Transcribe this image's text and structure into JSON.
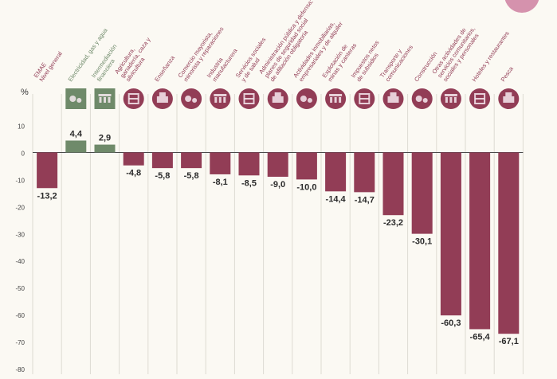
{
  "chart_data": {
    "type": "bar",
    "ylabel": "%",
    "ylim": [
      -80,
      10
    ],
    "yticks": [
      10,
      0,
      -10,
      -20,
      -30,
      -40,
      -50,
      -60,
      -70,
      -80
    ],
    "grid": "vertical",
    "colors": {
      "positive": "#6f8a6a",
      "negative": "#923d56",
      "grid": "#dedbd2",
      "zero_line": "#4a4a4a"
    },
    "categories": [
      "EMAE\nNivel general",
      "Electricidad, gas y agua",
      "Intermediación\nfinanciera",
      "Agricultura,\nganadería, caza y\nsilvicultura",
      "Enseñanza",
      "Comercio mayorista,\nminorista y reparaciones",
      "Industria\nmanufacturera",
      "Servicios sociales\ny de salud",
      "Administración pública y defensa;\nplanes de seguridad social\nde afiliación obligatoria",
      "Actividades inmobiliarias,\nempresariales y de alquiler",
      "Explotación de\nminas y canteras",
      "Impuestos netos\nde subsidios",
      "Transporte y\ncomunicaciones",
      "Construcción",
      "Otras actividades de\nservicios comunitarios,\nsociales y personales",
      "Hoteles y restaurantes",
      "Pesca"
    ],
    "values": [
      -13.2,
      4.4,
      2.9,
      -4.8,
      -5.8,
      -5.8,
      -8.1,
      -8.5,
      -9.0,
      -10.0,
      -14.4,
      -14.7,
      -23.2,
      -30.1,
      -60.3,
      -65.4,
      -67.1
    ],
    "data_labels": [
      "-13,2",
      "4,4",
      "2,9",
      "-4,8",
      "-5,8",
      "-5,8",
      "-8,1",
      "-8,5",
      "-9,0",
      "-10,0",
      "-14,4",
      "-14,7",
      "-23,2",
      "-30,1",
      "-60,3",
      "-65,4",
      "-67,1"
    ],
    "icons": [
      "none",
      "tractor-icon",
      "bank-icon",
      "agriculture-icon",
      "education-icon",
      "commerce-icon",
      "industry-icon",
      "health-icon",
      "government-icon",
      "real-estate-icon",
      "mining-icon",
      "taxes-icon",
      "transport-icon",
      "construction-icon",
      "community-services-icon",
      "hotel-icon",
      "fishing-icon"
    ]
  }
}
